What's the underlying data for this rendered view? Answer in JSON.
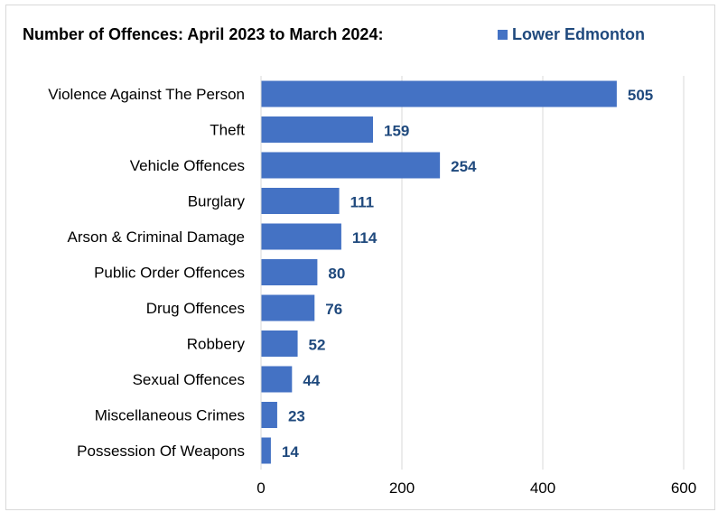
{
  "chart_data": {
    "type": "bar",
    "orientation": "horizontal",
    "title": "Number of Offences: April 2023 to March 2024:",
    "categories": [
      "Violence Against The Person",
      "Theft",
      "Vehicle Offences",
      "Burglary",
      "Arson & Criminal Damage",
      "Public Order Offences",
      "Drug Offences",
      "Robbery",
      "Sexual Offences",
      "Miscellaneous Crimes",
      "Possession Of Weapons"
    ],
    "series": [
      {
        "name": "Lower Edmonton",
        "values": [
          505,
          159,
          254,
          111,
          114,
          80,
          76,
          52,
          44,
          23,
          14
        ],
        "color": "#4472c4"
      }
    ],
    "xlim": [
      0,
      600
    ],
    "xticks": [
      "0",
      "200",
      "400",
      "600"
    ],
    "grid": "vertical",
    "legend_position": "top-right",
    "data_label_color": "#1f497d"
  }
}
